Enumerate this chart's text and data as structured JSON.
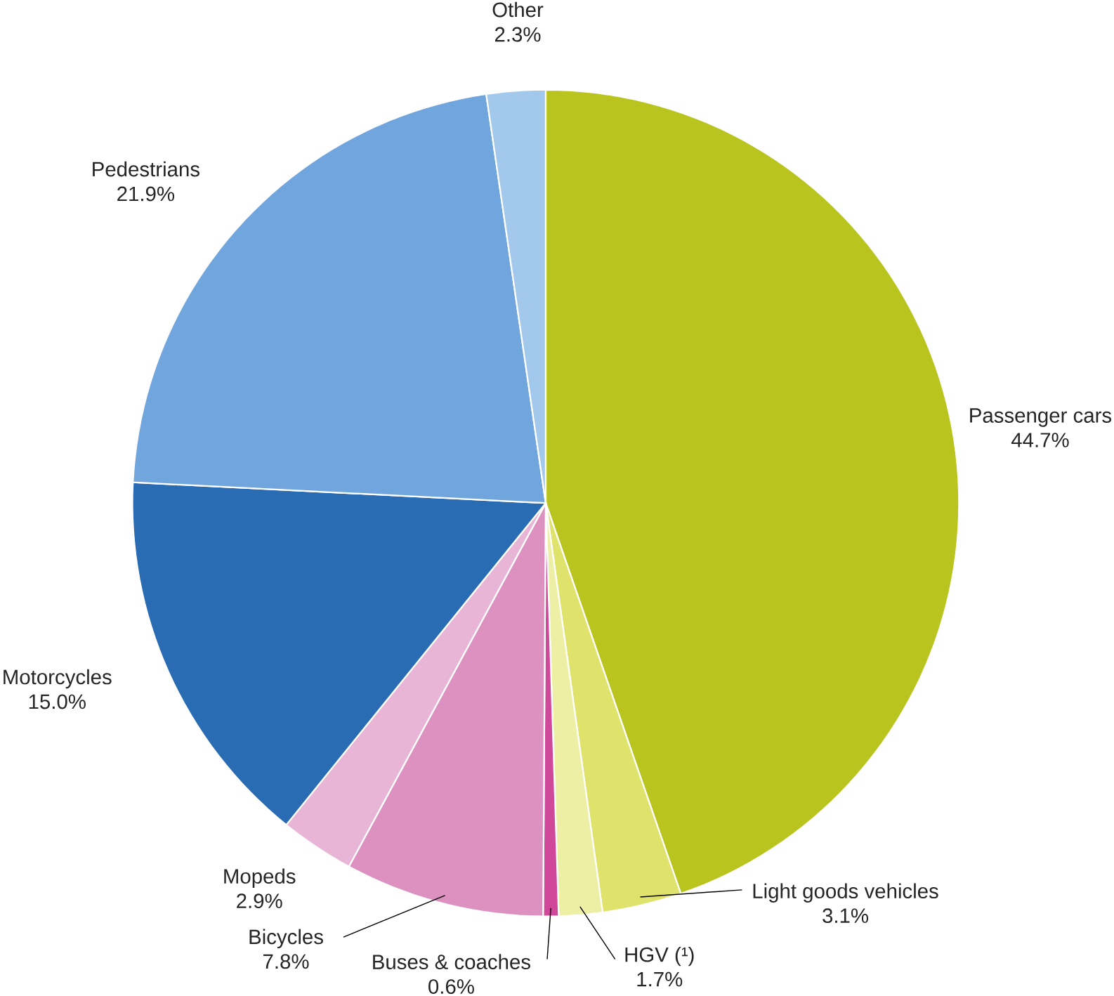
{
  "chart_data": {
    "type": "pie",
    "categories": [
      "Passenger cars",
      "Light goods vehicles",
      "HGV (¹)",
      "Buses & coaches",
      "Bicycles",
      "Mopeds",
      "Motorcycles",
      "Pedestrians",
      "Other"
    ],
    "values": [
      44.7,
      3.1,
      1.7,
      0.6,
      7.8,
      2.9,
      15.0,
      21.9,
      2.3
    ],
    "value_labels": [
      "44.7%",
      "3.1%",
      "1.7%",
      "0.6%",
      "7.8%",
      "2.9%",
      "15.0%",
      "21.9%",
      "2.3%"
    ],
    "colors": [
      "#b9c41f",
      "#dfe36c",
      "#edf0a4",
      "#cf4899",
      "#dd91c1",
      "#e8b5d7",
      "#2a6cb4",
      "#70a6dd",
      "#a2c8ec"
    ]
  }
}
